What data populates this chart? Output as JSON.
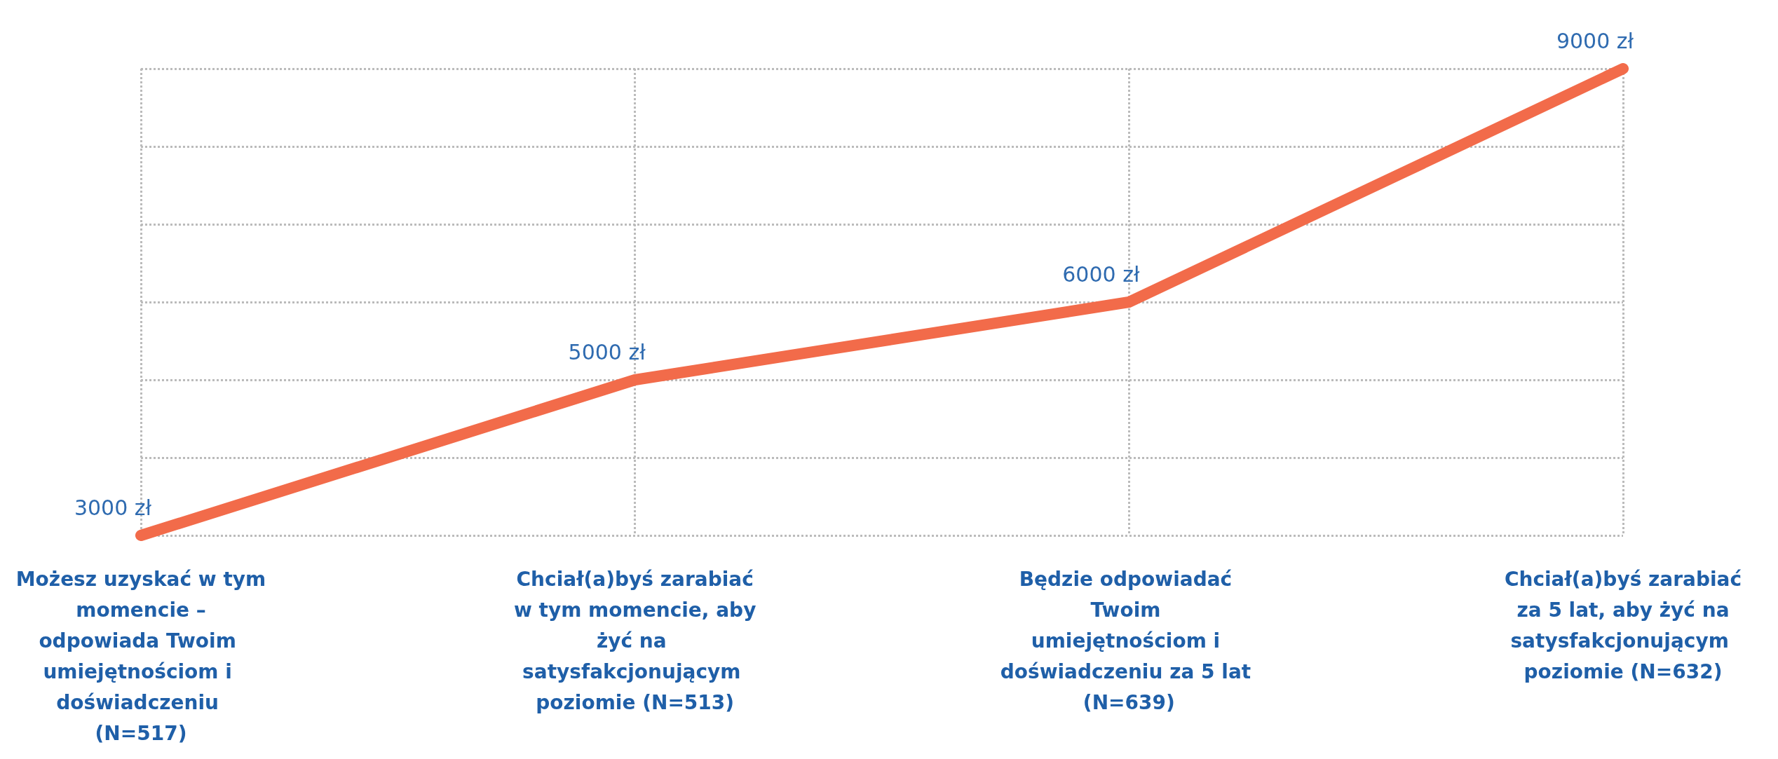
{
  "chart_data": {
    "type": "line",
    "categories": [
      "Możesz uzyskać w tym momencie – odpowiada Twoim umiejętnościom i doświadczeniu (N=517)",
      "Chciał(a)byś zarabiać w tym momencie, aby żyć na satysfakcjonującym poziomie (N=513)",
      "Będzie odpowiadać Twoim umiejętnościom i doświadczeniu za 5 lat (N=639)",
      "Chciał(a)byś zarabiać za 5 lat, aby żyć na satysfakcjonującym poziomie (N=632)"
    ],
    "series": [
      {
        "color": "#f26b4a",
        "values": [
          3000,
          5000,
          6000,
          9000
        ],
        "value_labels": [
          "3000 zł",
          "5000 zł",
          "6000 zł",
          "9000 zł"
        ]
      }
    ],
    "grid": true,
    "marker": "none",
    "line_style": "solid"
  }
}
